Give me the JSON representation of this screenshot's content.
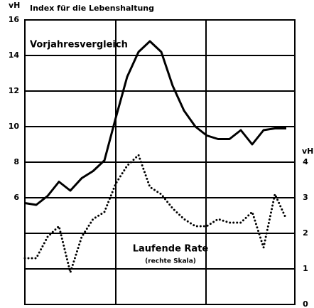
{
  "chart_data": {
    "type": "line",
    "title": "Index für die Lebenshaltung",
    "y_label": "vH",
    "y2_label": "vH",
    "annotations": [
      "Vorjahresvergleich",
      "Laufende Rate",
      "(rechte Skala)"
    ],
    "categories": [
      null,
      null,
      null,
      null,
      null,
      null,
      null,
      null,
      null,
      null,
      null,
      null,
      null,
      null,
      null,
      null,
      null,
      null,
      null,
      null,
      null,
      null,
      null,
      null
    ],
    "series": [
      {
        "name": "Vorjahresvergleich",
        "color": "#000000",
        "style": "solid",
        "values": [
          5.7,
          5.6,
          6.1,
          6.9,
          6.4,
          7.1,
          7.5,
          8.1,
          10.5,
          12.8,
          14.2,
          14.8,
          14.2,
          12.3,
          10.9,
          10.0,
          9.5,
          9.3,
          9.3,
          9.8,
          9.0,
          9.8,
          9.9,
          9.9
        ]
      },
      {
        "name": "Laufende Rate",
        "color": "#000000",
        "style": "dotted",
        "axis": "y2",
        "values": [
          1.3,
          1.3,
          1.9,
          2.2,
          0.9,
          1.9,
          2.4,
          2.6,
          3.4,
          3.9,
          4.2,
          3.3,
          3.1,
          2.7,
          2.4,
          2.2,
          2.2,
          2.4,
          2.3,
          2.3,
          2.6,
          1.6,
          3.1,
          2.4
        ]
      }
    ],
    "ylim": [
      0,
      16
    ],
    "yticks": [
      6,
      8,
      10,
      12,
      14,
      16
    ],
    "y2lim": [
      0,
      8
    ],
    "y2ticks": [
      0,
      1,
      2,
      3,
      4
    ],
    "grid": true
  }
}
